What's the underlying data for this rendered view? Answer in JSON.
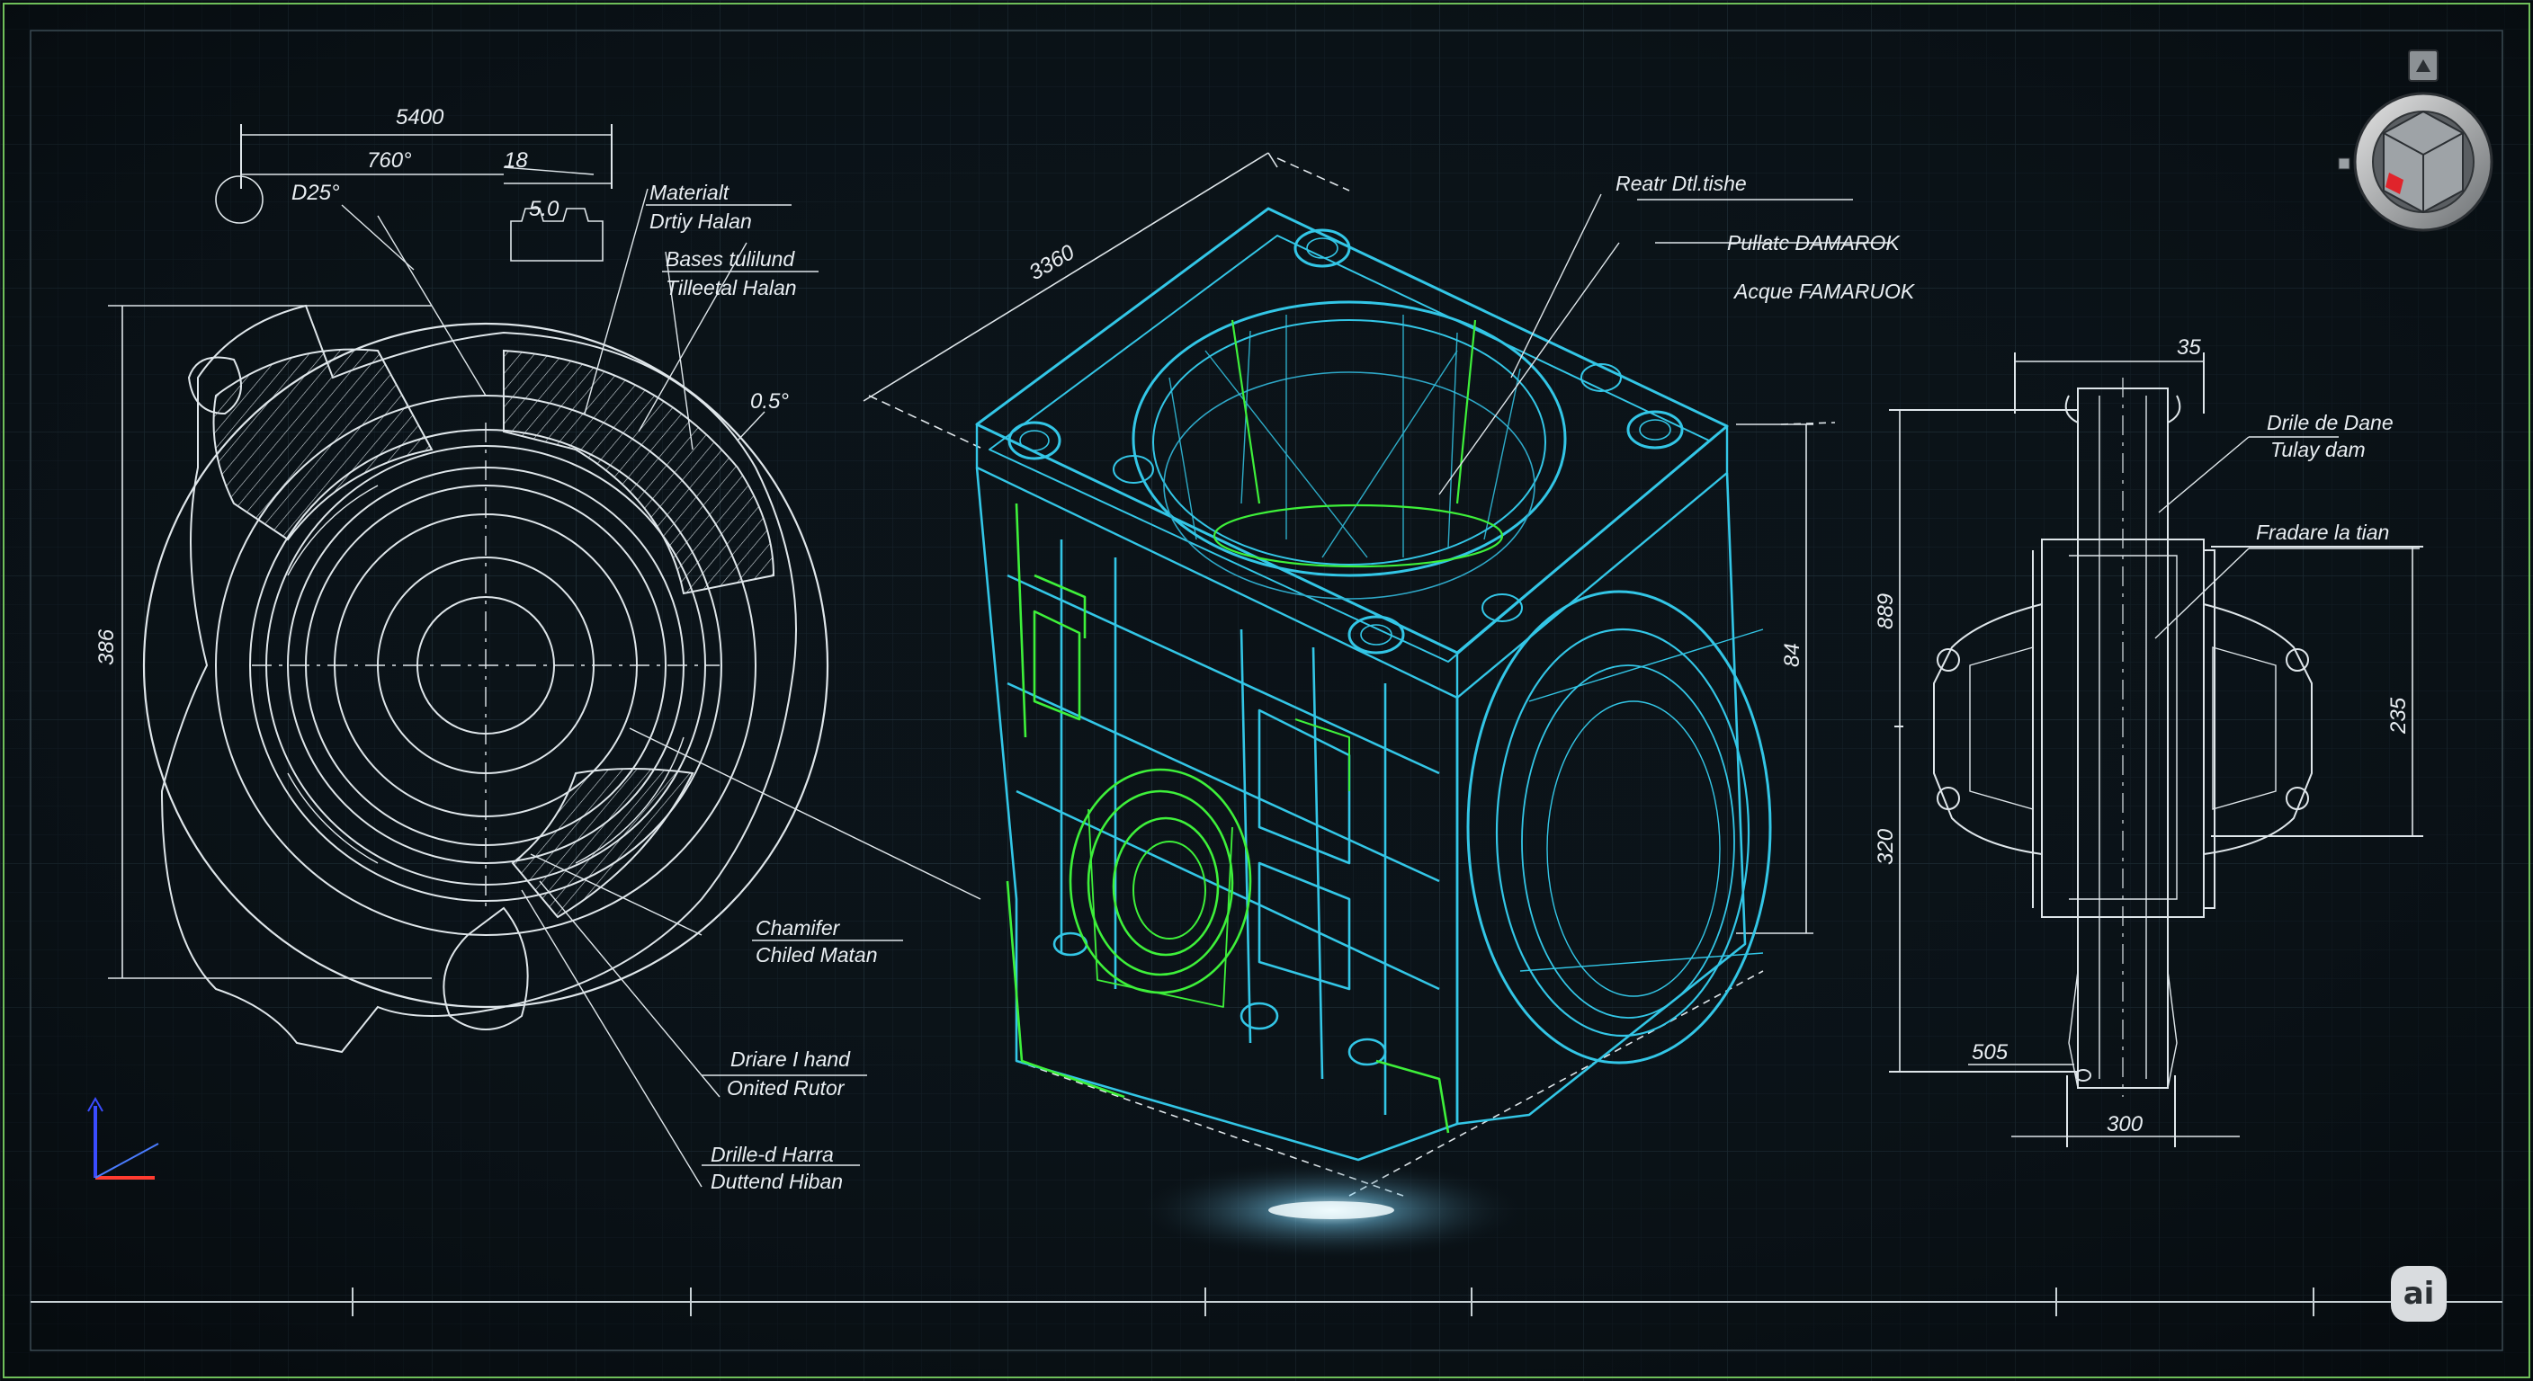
{
  "colors": {
    "background": "#0b1217",
    "grid": "#1e2c36",
    "linework": "#dfe6ea",
    "model_cyan": "#33c6e6",
    "model_green": "#3ef03a",
    "frame": "#6fbf5a"
  },
  "dimensions": {
    "left_overall": "5400",
    "left_angle": "760°",
    "left_small": "18",
    "left_dia": "D25°",
    "left_depth": "5.0",
    "left_chamfer": "0.5°",
    "left_height": "386",
    "center_diag": "3360",
    "center_height": "84",
    "right_top": "35",
    "right_height_a": "889",
    "right_height_b": "320",
    "right_height_c": "235",
    "right_bottom_a": "505",
    "right_bottom_b": "300"
  },
  "callouts": {
    "material": "Materialt",
    "drily_halan": "Drtiy Halan",
    "bases": "Bases tulilund",
    "titleetal": "Tilleetal Halan",
    "chamfer": "Chamifer",
    "chiled_matan": "Chiled Matan",
    "driare_hand": "Driare I hand",
    "onited_rutor": "Onited Rutor",
    "drille_harra": "Drille-d Harra",
    "duttend_hiban": "Duttend Hiban",
    "reatr": "Reatr Dtl.tishe",
    "pullatc": "Pullatc DAMAROK",
    "acque": "Acque FAMARUOK",
    "drile_dane": "Drile de Dane",
    "tulay_dam": "Tulay dam",
    "fradare": "Fradare la tian"
  },
  "badge": {
    "label": "ai"
  },
  "view_cube": {
    "icon": "view-cube-icon"
  },
  "axes_triad": {
    "icon": "axes-triad-icon"
  }
}
